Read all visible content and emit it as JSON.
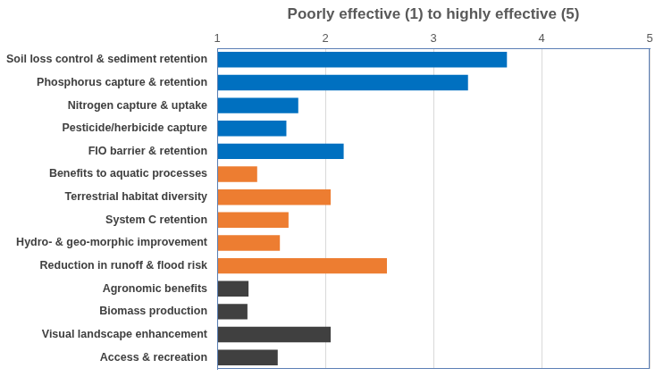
{
  "chart_data": {
    "type": "bar",
    "orientation": "horizontal",
    "xlabel": "Poorly effective (1) to highly effective (5)",
    "categories": [
      "Soil loss control & sediment retention",
      "Phosphorus capture & retention",
      "Nitrogen capture & uptake",
      "Pesticide/herbicide capture",
      "FIO barrier & retention",
      "Benefits to aquatic processes",
      "Terrestrial habitat diversity",
      "System C retention",
      "Hydro- & geo-morphic improvement",
      "Reduction in runoff & flood risk",
      "Agronomic benefits",
      "Biomass production",
      "Visual landscape enhancement",
      "Access & recreation"
    ],
    "values": [
      3.68,
      3.32,
      1.75,
      1.64,
      2.17,
      1.37,
      2.05,
      1.66,
      1.58,
      2.57,
      1.29,
      1.28,
      2.05,
      1.56
    ],
    "colors": [
      "#0070c0",
      "#0070c0",
      "#0070c0",
      "#0070c0",
      "#0070c0",
      "#ed7d31",
      "#ed7d31",
      "#ed7d31",
      "#ed7d31",
      "#ed7d31",
      "#404040",
      "#404040",
      "#404040",
      "#404040"
    ],
    "xlim": [
      1,
      5
    ],
    "xticks": [
      1,
      2,
      3,
      4,
      5
    ],
    "grid": true
  }
}
